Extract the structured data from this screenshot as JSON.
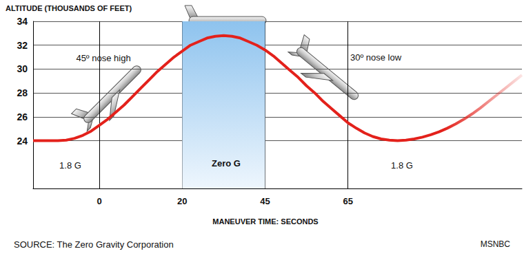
{
  "chart_data": {
    "type": "line",
    "y_label": "ALTITUDE (THOUSANDS OF FEET)",
    "x_label": "MANEUVER TIME: SECONDS",
    "source": "SOURCE: The Zero Gravity Corporation",
    "credit": "MSNBC",
    "categories": [
      null,
      null,
      null,
      null,
      null,
      null,
      null,
      null,
      "0",
      null,
      null,
      null,
      null,
      null,
      null,
      null,
      null,
      null,
      "20",
      null,
      null,
      null,
      null,
      null,
      null,
      null,
      null,
      null,
      "45",
      null,
      null,
      null,
      null,
      null,
      null,
      null,
      null,
      null,
      "65",
      null,
      null,
      null,
      null,
      null,
      null,
      null,
      null,
      null,
      null,
      null,
      null,
      null,
      null,
      null,
      null,
      null,
      null,
      null,
      null,
      null
    ],
    "values": [
      24.0,
      24.0,
      24.0,
      24.0,
      24.05,
      24.2,
      24.45,
      24.8,
      25.3,
      25.8,
      26.4,
      27.0,
      27.7,
      28.4,
      29.1,
      29.8,
      30.4,
      31.0,
      31.5,
      32.0,
      32.3,
      32.6,
      32.75,
      32.8,
      32.75,
      32.6,
      32.3,
      32.0,
      31.6,
      31.1,
      30.5,
      29.9,
      29.3,
      28.6,
      28.0,
      27.3,
      26.7,
      26.1,
      25.5,
      25.05,
      24.65,
      24.35,
      24.15,
      24.05,
      24.0,
      24.05,
      24.15,
      24.3,
      24.5,
      24.75,
      25.05,
      25.4,
      25.8,
      26.25,
      26.75,
      27.3,
      27.85,
      28.4,
      28.95,
      29.5
    ],
    "color": "#e3211b",
    "ylim": [
      20,
      34
    ],
    "yticks": [
      24,
      26,
      28,
      30,
      32,
      34
    ],
    "grid": true,
    "annotations": [
      "45º nose high",
      "30º nose low",
      "Zero G",
      "1.8 G",
      "1.8 G"
    ],
    "shaded_region": [
      "20",
      "45"
    ]
  }
}
